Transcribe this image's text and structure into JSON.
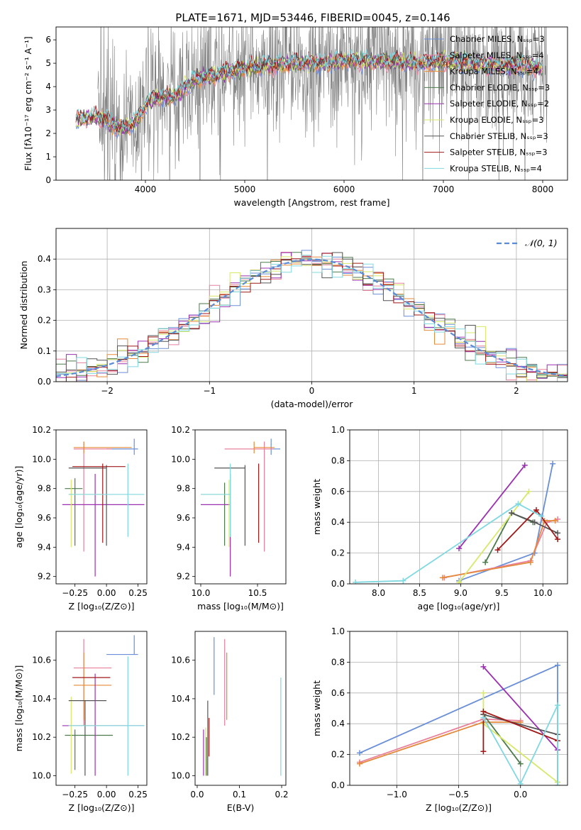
{
  "figure_title": "PLATE=1671, MJD=53446, FIBERID=0045, z=0.146",
  "chart_data": [
    {
      "id": "spectrum",
      "type": "line",
      "xlabel": "wavelength [Angstrom, rest frame]",
      "ylabel": "Flux [fλ10⁻¹⁷ erg cm⁻² s⁻¹ A⁻¹]",
      "xlim": [
        3100,
        8250
      ],
      "ylim": [
        0,
        6.55
      ],
      "xticks": [
        4000,
        5000,
        6000,
        7000,
        8000
      ],
      "yticks": [
        0,
        1,
        2,
        3,
        4,
        5,
        6
      ],
      "legend_position": "top-right",
      "legend": [
        {
          "name": "Chabrier MILES, Nₛₛₚ=3",
          "color": "#6a8fd8"
        },
        {
          "name": "Salpeter MILES, Nₛₛₚ=4",
          "color": "#e8809c"
        },
        {
          "name": "Kroupa MILES, Nₛₛₚ=4",
          "color": "#e58a3a"
        },
        {
          "name": "Chabrier ELODIE, Nₛₛₚ=3",
          "color": "#4d7a4d"
        },
        {
          "name": "Salpeter ELODIE, Nₛₛₚ=2",
          "color": "#9b30b0"
        },
        {
          "name": "Kroupa ELODIE, Nₛₛₚ=3",
          "color": "#d8e86a"
        },
        {
          "name": "Chabrier STELIB, Nₛₛₚ=3",
          "color": "#555555"
        },
        {
          "name": "Salpeter STELIB, Nₛₛₚ=3",
          "color": "#a01818"
        },
        {
          "name": "Kroupa STELIB, Nₛₛₚ=4",
          "color": "#80d8e0"
        }
      ],
      "observed_color": "#7f7f7f",
      "model_continuum": {
        "x": [
          3300,
          3500,
          3600,
          3700,
          3800,
          3900,
          4000,
          4100,
          4200,
          4300,
          4400,
          4500,
          4600,
          4800,
          5000,
          5200,
          5500,
          5800,
          6000,
          6200,
          6500,
          6800,
          7000,
          7200,
          7500,
          7800,
          8000
        ],
        "y": [
          2.6,
          2.7,
          2.6,
          2.3,
          2.2,
          2.5,
          3.2,
          3.5,
          3.6,
          3.6,
          4.0,
          4.3,
          4.4,
          4.6,
          4.8,
          4.9,
          5.0,
          5.0,
          5.1,
          5.1,
          5.05,
          5.0,
          5.1,
          5.0,
          4.95,
          4.9,
          4.8
        ]
      }
    },
    {
      "id": "residuals",
      "type": "line",
      "xlabel": "(data-model)/error",
      "ylabel": "Normed distribution",
      "xlim": [
        -2.5,
        2.5
      ],
      "ylim": [
        0,
        0.5
      ],
      "xticks": [
        -2,
        -1,
        0,
        1,
        2
      ],
      "yticks": [
        0.0,
        0.1,
        0.2,
        0.3,
        0.4
      ],
      "grid": true,
      "legend_position": "top-right",
      "reference_curve": {
        "name": "𝒩(0, 1)",
        "color": "#5b8bd6",
        "style": "dashed"
      }
    },
    {
      "id": "age-vs-Z",
      "type": "scatter",
      "xlabel": "Z [log₁₀(Z/Z⊙)]",
      "ylabel": "age  [log₁₀(age/yr)]",
      "xlim": [
        -0.4,
        0.32
      ],
      "ylim": [
        9.15,
        10.2
      ],
      "xticks": [
        -0.25,
        0.0,
        0.25
      ],
      "yticks": [
        9.2,
        9.4,
        9.6,
        9.8,
        10.0,
        10.2
      ],
      "points": [
        {
          "color": "#6a8fd8",
          "x": 0.22,
          "xerr": [
            0.22,
            0.03
          ],
          "y": 10.07,
          "yerr": [
            0.04,
            0.07
          ]
        },
        {
          "color": "#e8809c",
          "x": -0.18,
          "xerr": [
            0.08,
            0.22
          ],
          "y": 10.07,
          "yerr": [
            0.7,
            0.05
          ]
        },
        {
          "color": "#e58a3a",
          "x": -0.18,
          "xerr": [
            0.08,
            0.38
          ],
          "y": 10.08,
          "yerr": [
            0.04,
            0.04
          ]
        },
        {
          "color": "#4d7a4d",
          "x": -0.25,
          "xerr": [
            0.08,
            0.06
          ],
          "y": 9.8,
          "yerr": [
            0.39,
            0.07
          ]
        },
        {
          "color": "#9b30b0",
          "x": -0.09,
          "xerr": [
            0.26,
            0.39
          ],
          "y": 9.69,
          "yerr": [
            0.49,
            0.21
          ]
        },
        {
          "color": "#d8e86a",
          "x": -0.28,
          "xerr": [
            0.02,
            0.26
          ],
          "y": 9.76,
          "yerr": [
            0.36,
            0.1
          ]
        },
        {
          "color": "#555555",
          "x": 0.0,
          "xerr": [
            0.3,
            0.0
          ],
          "y": 9.94,
          "yerr": [
            0.53,
            0.02
          ]
        },
        {
          "color": "#a01818",
          "x": -0.03,
          "xerr": [
            0.24,
            0.18
          ],
          "y": 9.95,
          "yerr": [
            0.52,
            0.02
          ]
        },
        {
          "color": "#80d8e0",
          "x": 0.17,
          "xerr": [
            0.47,
            0.13
          ],
          "y": 9.76,
          "yerr": [
            0.29,
            0.21
          ]
        }
      ]
    },
    {
      "id": "age-vs-mass",
      "type": "scatter",
      "xlabel": "mass [log₁₀(M/M⊙)]",
      "ylabel": "",
      "xlim": [
        9.95,
        10.75
      ],
      "ylim": [
        9.15,
        10.2
      ],
      "xticks": [
        10.0,
        10.5
      ],
      "yticks": [
        9.2,
        9.4,
        9.6,
        9.8,
        10.0,
        10.2
      ],
      "points": [
        {
          "color": "#6a8fd8",
          "x": 10.62,
          "xerr": [
            0.0,
            0.08
          ],
          "y": 10.07,
          "yerr": [
            0.04,
            0.07
          ]
        },
        {
          "color": "#e8809c",
          "x": 10.56,
          "xerr": [
            0.35,
            0.08
          ],
          "y": 10.07,
          "yerr": [
            0.7,
            0.05
          ]
        },
        {
          "color": "#e58a3a",
          "x": 10.47,
          "xerr": [
            0.0,
            0.18
          ],
          "y": 10.08,
          "yerr": [
            0.04,
            0.04
          ]
        },
        {
          "color": "#4d7a4d",
          "x": 10.21,
          "xerr": [
            0.0,
            0.0
          ],
          "y": 9.76,
          "yerr": [
            0.35,
            0.08
          ]
        },
        {
          "color": "#9b30b0",
          "x": 10.26,
          "xerr": [
            0.26,
            0.0
          ],
          "y": 9.69,
          "yerr": [
            0.49,
            0.21
          ]
        },
        {
          "color": "#d8e86a",
          "x": 10.25,
          "xerr": [
            0.25,
            0.0
          ],
          "y": 9.76,
          "yerr": [
            0.36,
            0.1
          ]
        },
        {
          "color": "#555555",
          "x": 10.39,
          "xerr": [
            0.27,
            0.0
          ],
          "y": 9.94,
          "yerr": [
            0.53,
            0.02
          ]
        },
        {
          "color": "#a01818",
          "x": 10.51,
          "xerr": [
            0.0,
            0.0
          ],
          "y": 9.95,
          "yerr": [
            0.52,
            0.02
          ]
        },
        {
          "color": "#80d8e0",
          "x": 10.26,
          "xerr": [
            0.26,
            0.0
          ],
          "y": 9.76,
          "yerr": [
            0.29,
            0.21
          ]
        }
      ]
    },
    {
      "id": "weight-vs-age",
      "type": "line",
      "xlabel": "age  [log₁₀(age/yr)]",
      "ylabel": "mass weight",
      "xlim": [
        7.65,
        10.3
      ],
      "ylim": [
        0,
        1
      ],
      "xticks": [
        8.0,
        8.5,
        9.0,
        9.5,
        10.0
      ],
      "yticks": [
        0.0,
        0.2,
        0.4,
        0.6,
        0.8,
        1.0
      ],
      "grid": true,
      "series": [
        {
          "color": "#6a8fd8",
          "x": [
            8.98,
            9.9,
            10.12
          ],
          "y": [
            0.02,
            0.2,
            0.78
          ]
        },
        {
          "color": "#e8809c",
          "x": [
            8.8,
            9.85,
            10.05,
            10.18
          ],
          "y": [
            0.04,
            0.15,
            0.4,
            0.42
          ]
        },
        {
          "color": "#e58a3a",
          "x": [
            8.78,
            9.85,
            10.02,
            10.15
          ],
          "y": [
            0.04,
            0.14,
            0.41,
            0.41
          ]
        },
        {
          "color": "#4d7a4d",
          "x": [
            9.3,
            9.62,
            9.88
          ],
          "y": [
            0.14,
            0.46,
            0.4
          ]
        },
        {
          "color": "#9b30b0",
          "x": [
            8.98,
            9.78
          ],
          "y": [
            0.23,
            0.77
          ]
        },
        {
          "color": "#d8e86a",
          "x": [
            8.98,
            9.83
          ],
          "y": [
            0.01,
            0.6
          ]
        },
        {
          "color": "#555555",
          "x": [
            9.62,
            9.9,
            10.18
          ],
          "y": [
            0.46,
            0.4,
            0.33
          ]
        },
        {
          "color": "#a01818",
          "x": [
            9.45,
            9.92,
            10.18
          ],
          "y": [
            0.22,
            0.48,
            0.29
          ]
        },
        {
          "color": "#80d8e0",
          "x": [
            7.72,
            8.3,
            9.7,
            9.98
          ],
          "y": [
            0.01,
            0.02,
            0.52,
            0.44
          ]
        }
      ]
    },
    {
      "id": "mass-vs-Z",
      "type": "scatter",
      "xlabel": "Z [log₁₀(Z/Z⊙)]",
      "ylabel": "mass [log₁₀(M/M⊙)]",
      "xlim": [
        -0.4,
        0.32
      ],
      "ylim": [
        9.95,
        10.75
      ],
      "xticks": [
        -0.25,
        0.0,
        0.25
      ],
      "yticks": [
        10.0,
        10.2,
        10.4,
        10.6
      ],
      "points": [
        {
          "color": "#6a8fd8",
          "x": 0.22,
          "xerr": [
            0.22,
            0.03
          ],
          "y": 10.63,
          "yerr": [
            0.0,
            0.1
          ]
        },
        {
          "color": "#e8809c",
          "x": -0.18,
          "xerr": [
            0.08,
            0.22
          ],
          "y": 10.56,
          "yerr": [
            0.3,
            0.15
          ]
        },
        {
          "color": "#e58a3a",
          "x": -0.18,
          "xerr": [
            0.08,
            0.22
          ],
          "y": 10.47,
          "yerr": [
            0.18,
            0.17
          ]
        },
        {
          "color": "#4d7a4d",
          "x": -0.25,
          "xerr": [
            0.08,
            0.3
          ],
          "y": 10.21,
          "yerr": [
            0.18,
            0.03
          ]
        },
        {
          "color": "#9b30b0",
          "x": -0.09,
          "xerr": [
            0.26,
            0.39
          ],
          "y": 10.26,
          "yerr": [
            0.26,
            0.27
          ]
        },
        {
          "color": "#d8e86a",
          "x": -0.28,
          "xerr": [
            0.02,
            0.26
          ],
          "y": 10.26,
          "yerr": [
            0.25,
            0.15
          ]
        },
        {
          "color": "#555555",
          "x": -0.17,
          "xerr": [
            0.13,
            0.17
          ],
          "y": 10.39,
          "yerr": [
            0.39,
            0.0
          ]
        },
        {
          "color": "#a01818",
          "x": -0.03,
          "xerr": [
            0.24,
            0.06
          ],
          "y": 10.51,
          "yerr": [
            0.0,
            0.0
          ]
        },
        {
          "color": "#80d8e0",
          "x": 0.17,
          "xerr": [
            0.47,
            0.13
          ],
          "y": 10.26,
          "yerr": [
            0.26,
            0.36
          ]
        }
      ]
    },
    {
      "id": "mass-vs-EBV",
      "type": "scatter",
      "xlabel": "E(B-V)",
      "ylabel": "",
      "xlim": [
        -0.005,
        0.21
      ],
      "ylim": [
        9.95,
        10.75
      ],
      "xticks": [
        0.0,
        0.1,
        0.2
      ],
      "yticks": [
        10.0,
        10.2,
        10.4,
        10.6
      ],
      "points": [
        {
          "color": "#6a8fd8",
          "x": 0.04,
          "yerr": [
            0.0,
            0.3
          ],
          "y": 10.42
        },
        {
          "color": "#e8809c",
          "x": 0.065,
          "yerr": [
            0.3,
            0.15
          ],
          "y": 10.56
        },
        {
          "color": "#e58a3a",
          "x": 0.07,
          "yerr": [
            0.18,
            0.17
          ],
          "y": 10.47
        },
        {
          "color": "#4d7a4d",
          "x": 0.022,
          "yerr": [
            0.2,
            0.0
          ],
          "y": 10.2
        },
        {
          "color": "#9b30b0",
          "x": 0.015,
          "yerr": [
            0.24,
            0.0
          ],
          "y": 10.24
        },
        {
          "color": "#d8e86a",
          "x": 0.02,
          "yerr": [
            0.25,
            0.0
          ],
          "y": 10.25
        },
        {
          "color": "#555555",
          "x": 0.025,
          "yerr": [
            0.39,
            0.0
          ],
          "y": 10.39
        },
        {
          "color": "#a01818",
          "x": 0.028,
          "yerr": [
            0.2,
            0.0
          ],
          "y": 10.3
        },
        {
          "color": "#80d8e0",
          "x": 0.198,
          "yerr": [
            0.26,
            0.25
          ],
          "y": 10.26
        }
      ]
    },
    {
      "id": "weight-vs-Z",
      "type": "line",
      "xlabel": "Z [log₁₀(Z/Z⊙)]",
      "ylabel": "mass weight",
      "xlim": [
        -1.38,
        0.38
      ],
      "ylim": [
        0,
        1
      ],
      "xticks": [
        -1.0,
        -0.5,
        0.0
      ],
      "yticks": [
        0.0,
        0.2,
        0.4,
        0.6,
        0.8,
        1.0
      ],
      "grid": true,
      "series": [
        {
          "color": "#6a8fd8",
          "x": [
            -1.3,
            0.3,
            0.3
          ],
          "y": [
            0.21,
            0.78,
            0.02
          ]
        },
        {
          "color": "#e8809c",
          "x": [
            -1.3,
            -0.3,
            0.0
          ],
          "y": [
            0.15,
            0.43,
            0.42
          ]
        },
        {
          "color": "#e58a3a",
          "x": [
            -1.3,
            -0.3,
            0.0
          ],
          "y": [
            0.14,
            0.41,
            0.41
          ]
        },
        {
          "color": "#4d7a4d",
          "x": [
            -0.3,
            0.0
          ],
          "y": [
            0.46,
            0.14
          ]
        },
        {
          "color": "#9b30b0",
          "x": [
            -0.3,
            0.3
          ],
          "y": [
            0.77,
            0.23
          ]
        },
        {
          "color": "#d8e86a",
          "x": [
            -0.3,
            -0.3,
            0.3
          ],
          "y": [
            0.6,
            0.4,
            0.02
          ]
        },
        {
          "color": "#555555",
          "x": [
            -0.3,
            0.3
          ],
          "y": [
            0.46,
            0.33
          ]
        },
        {
          "color": "#a01818",
          "x": [
            -0.3,
            -0.3,
            0.3
          ],
          "y": [
            0.22,
            0.48,
            0.29
          ]
        },
        {
          "color": "#80d8e0",
          "x": [
            -0.3,
            0.0,
            0.3,
            0.3
          ],
          "y": [
            0.44,
            0.01,
            0.52,
            0.0
          ]
        }
      ]
    }
  ]
}
